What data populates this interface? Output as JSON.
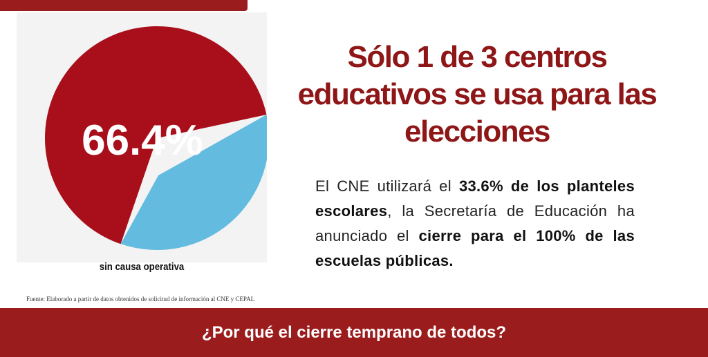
{
  "colors": {
    "primary_red": "#a80f1b",
    "slice_blue": "#64bbe0",
    "banner": "#9b1c1c"
  },
  "chart_data": {
    "type": "pie",
    "slices": [
      {
        "value": 66.4,
        "color": "#a80f1b"
      },
      {
        "value": 33.6,
        "color": "#64bbe0"
      }
    ],
    "data_label": "66.4%",
    "caption": "sin causa operativa"
  },
  "source": "Fuente: Elaborado a partir de datos obtenidos de solicitud de información al CNE y CEPAL",
  "headline": "Sólo 1 de 3 centros educativos se usa para las elecciones",
  "body": {
    "p1": "El CNE utilizará el ",
    "b1": "33.6% de los planteles escolares",
    "p2": ", la Secretaría de Educación ha anunciado el ",
    "b2": "cierre para el 100% de las escuelas públicas."
  },
  "banner_question": "¿Por qué el cierre temprano de todos?"
}
